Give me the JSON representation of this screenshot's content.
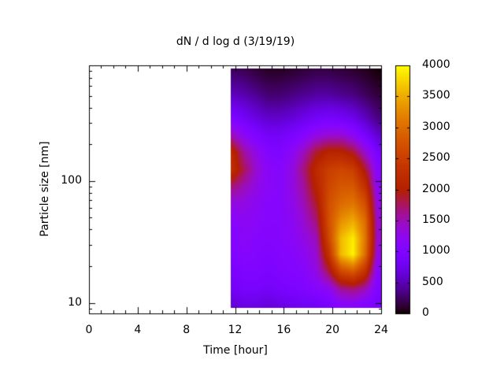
{
  "figure": {
    "background": "#ffffff"
  },
  "axes": {
    "x": {
      "label": "Time [hour]",
      "range": [
        0,
        24
      ],
      "major_ticks": [
        0,
        4,
        8,
        12,
        16,
        20,
        24
      ],
      "minor_ticks": [
        1,
        2,
        3,
        5,
        6,
        7,
        9,
        10,
        11,
        13,
        14,
        15,
        17,
        18,
        19,
        21,
        22,
        23
      ]
    },
    "y": {
      "label": "Particle size [nm]",
      "scale": "log",
      "range": [
        8.2,
        890
      ],
      "major_ticks": [
        10,
        100
      ],
      "minor_ticks": [
        9,
        20,
        30,
        40,
        50,
        60,
        70,
        80,
        90,
        200,
        300,
        400,
        500,
        600,
        700,
        800
      ]
    }
  },
  "colorbar": {
    "range": [
      0,
      4000
    ],
    "tick_labels": [
      0,
      500,
      1000,
      1500,
      2000,
      2500,
      3000,
      3500,
      4000
    ],
    "inner_ticks": [
      500,
      1000,
      1500,
      2000,
      2500,
      3000,
      3500
    ],
    "palette": "gnuplot default pm3d (rgbformulae 7,5,15): black-violet-magenta-red-orange-yellow",
    "palette_anchor_colors": {
      "0": "#000000",
      "1000": "#7f04ff",
      "2000": "#b42000",
      "3000": "#dd6c00",
      "4000": "#ffff00"
    }
  },
  "chart_data": {
    "type": "heatmap",
    "title": "dN / d log d (3/19/19)",
    "xlabel": "Time [hour]",
    "ylabel": "Particle size [nm]",
    "value_range": [
      0,
      4000
    ],
    "x_axis_range_hours": [
      0,
      24
    ],
    "y_axis_range_nm": [
      8.2,
      890
    ],
    "data_time_range": [
      11.65,
      24
    ],
    "data_size_range_nm": [
      9.2,
      840
    ],
    "x_hours": [
      11.7,
      12.7,
      13.7,
      14.7,
      15.7,
      16.7,
      17.7,
      18.7,
      19.7,
      20.7,
      21.7,
      22.7,
      23.7
    ],
    "y_sizes_nm": [
      9.5,
      13,
      18,
      25,
      34,
      47,
      65,
      90,
      124,
      171,
      236,
      325,
      500,
      800
    ],
    "values": [
      [
        600,
        700,
        700,
        650,
        700,
        750,
        800,
        800,
        900,
        1100,
        1100,
        1000,
        900
      ],
      [
        800,
        900,
        900,
        850,
        900,
        950,
        1000,
        1100,
        1200,
        1600,
        1700,
        1500,
        1000
      ],
      [
        900,
        1000,
        1000,
        950,
        1000,
        1050,
        1100,
        1300,
        1800,
        2600,
        2800,
        2300,
        1100
      ],
      [
        1000,
        1100,
        1050,
        1000,
        1050,
        1100,
        1200,
        1400,
        2300,
        3600,
        3950,
        3000,
        1300
      ],
      [
        1050,
        1150,
        1100,
        1050,
        1100,
        1150,
        1300,
        1500,
        2600,
        3600,
        3900,
        3100,
        1400
      ],
      [
        1100,
        1200,
        1150,
        1100,
        1100,
        1200,
        1400,
        1700,
        2700,
        3300,
        3500,
        3000,
        1400
      ],
      [
        1300,
        1300,
        1200,
        1100,
        1100,
        1250,
        1500,
        1900,
        2700,
        3000,
        3100,
        2700,
        1300
      ],
      [
        1700,
        1500,
        1300,
        1150,
        1100,
        1300,
        1600,
        2100,
        2600,
        2800,
        2800,
        2300,
        1200
      ],
      [
        2300,
        1800,
        1400,
        1150,
        1100,
        1300,
        1700,
        2200,
        2500,
        2600,
        2500,
        1900,
        1100
      ],
      [
        2200,
        1600,
        1300,
        1050,
        1000,
        1200,
        1500,
        1900,
        2100,
        2100,
        1900,
        1400,
        900
      ],
      [
        1500,
        1200,
        1000,
        850,
        850,
        950,
        1100,
        1300,
        1400,
        1400,
        1200,
        900,
        600
      ],
      [
        1000,
        850,
        700,
        600,
        600,
        650,
        750,
        850,
        900,
        850,
        750,
        550,
        350
      ],
      [
        550,
        500,
        400,
        300,
        300,
        350,
        400,
        450,
        450,
        400,
        350,
        250,
        150
      ],
      [
        250,
        220,
        150,
        100,
        100,
        120,
        150,
        180,
        180,
        150,
        120,
        80,
        30
      ]
    ],
    "annotations": "No data before ~11.6 h (white region). Peak ~4000 at ~22 h / ~25-35 nm; secondary maximum ~2300 at ~12 h / ~130 nm; purple valley ~1000-1100 around 14-17 h.",
    "legend_position": "right-colorbar"
  }
}
